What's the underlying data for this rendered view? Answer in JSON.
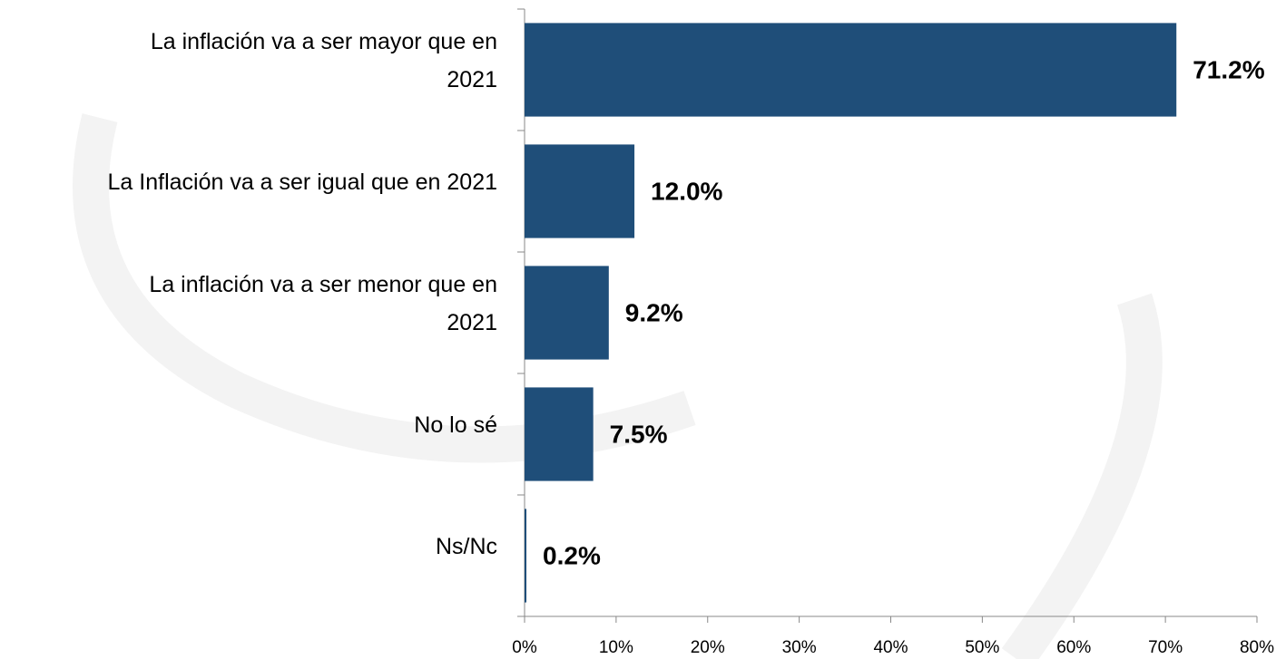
{
  "chart_data": {
    "type": "barh",
    "categories": [
      "La inflación va a ser mayor que en\n2021",
      "La Inflación va a ser igual que en 2021",
      "La inflación va a ser menor que en\n2021",
      "No lo sé",
      "Ns/Nc"
    ],
    "values": [
      71.2,
      12.0,
      9.2,
      7.5,
      0.2
    ],
    "value_labels": [
      "71.2%",
      "12.0%",
      "9.2%",
      "7.5%",
      "0.2%"
    ],
    "color": "#1f4e79",
    "xlim": [
      0,
      80
    ],
    "xticks": [
      {
        "value": 0,
        "label": "0%"
      },
      {
        "value": 10,
        "label": "10%"
      },
      {
        "value": 20,
        "label": "20%"
      },
      {
        "value": 30,
        "label": "30%"
      },
      {
        "value": 40,
        "label": "40%"
      },
      {
        "value": 50,
        "label": "50%"
      },
      {
        "value": 60,
        "label": "60%"
      },
      {
        "value": 70,
        "label": "70%"
      },
      {
        "value": 80,
        "label": "80%"
      }
    ]
  }
}
